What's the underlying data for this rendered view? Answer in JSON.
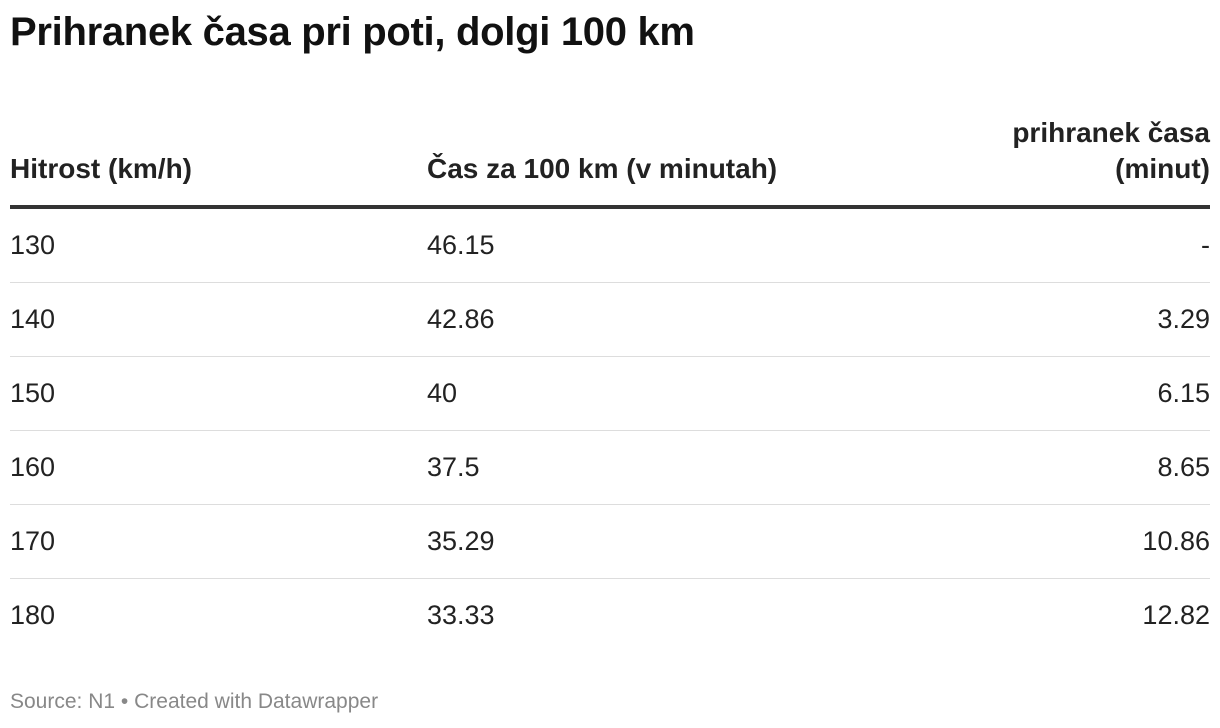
{
  "title": "Prihranek časa pri poti, dolgi 100 km",
  "chart_data": {
    "type": "table",
    "columns": [
      "Hitrost (km/h)",
      "Čas za 100 km (v minutah)",
      "prihranek časa (minut)"
    ],
    "rows": [
      [
        "130",
        "46.15",
        "-"
      ],
      [
        "140",
        "42.86",
        "3.29"
      ],
      [
        "150",
        "40",
        "6.15"
      ],
      [
        "160",
        "37.5",
        "8.65"
      ],
      [
        "170",
        "35.29",
        "10.86"
      ],
      [
        "180",
        "33.33",
        "12.82"
      ]
    ]
  },
  "footer": {
    "source": "Source: N1",
    "separator": "•",
    "credit": "Created with Datawrapper"
  }
}
